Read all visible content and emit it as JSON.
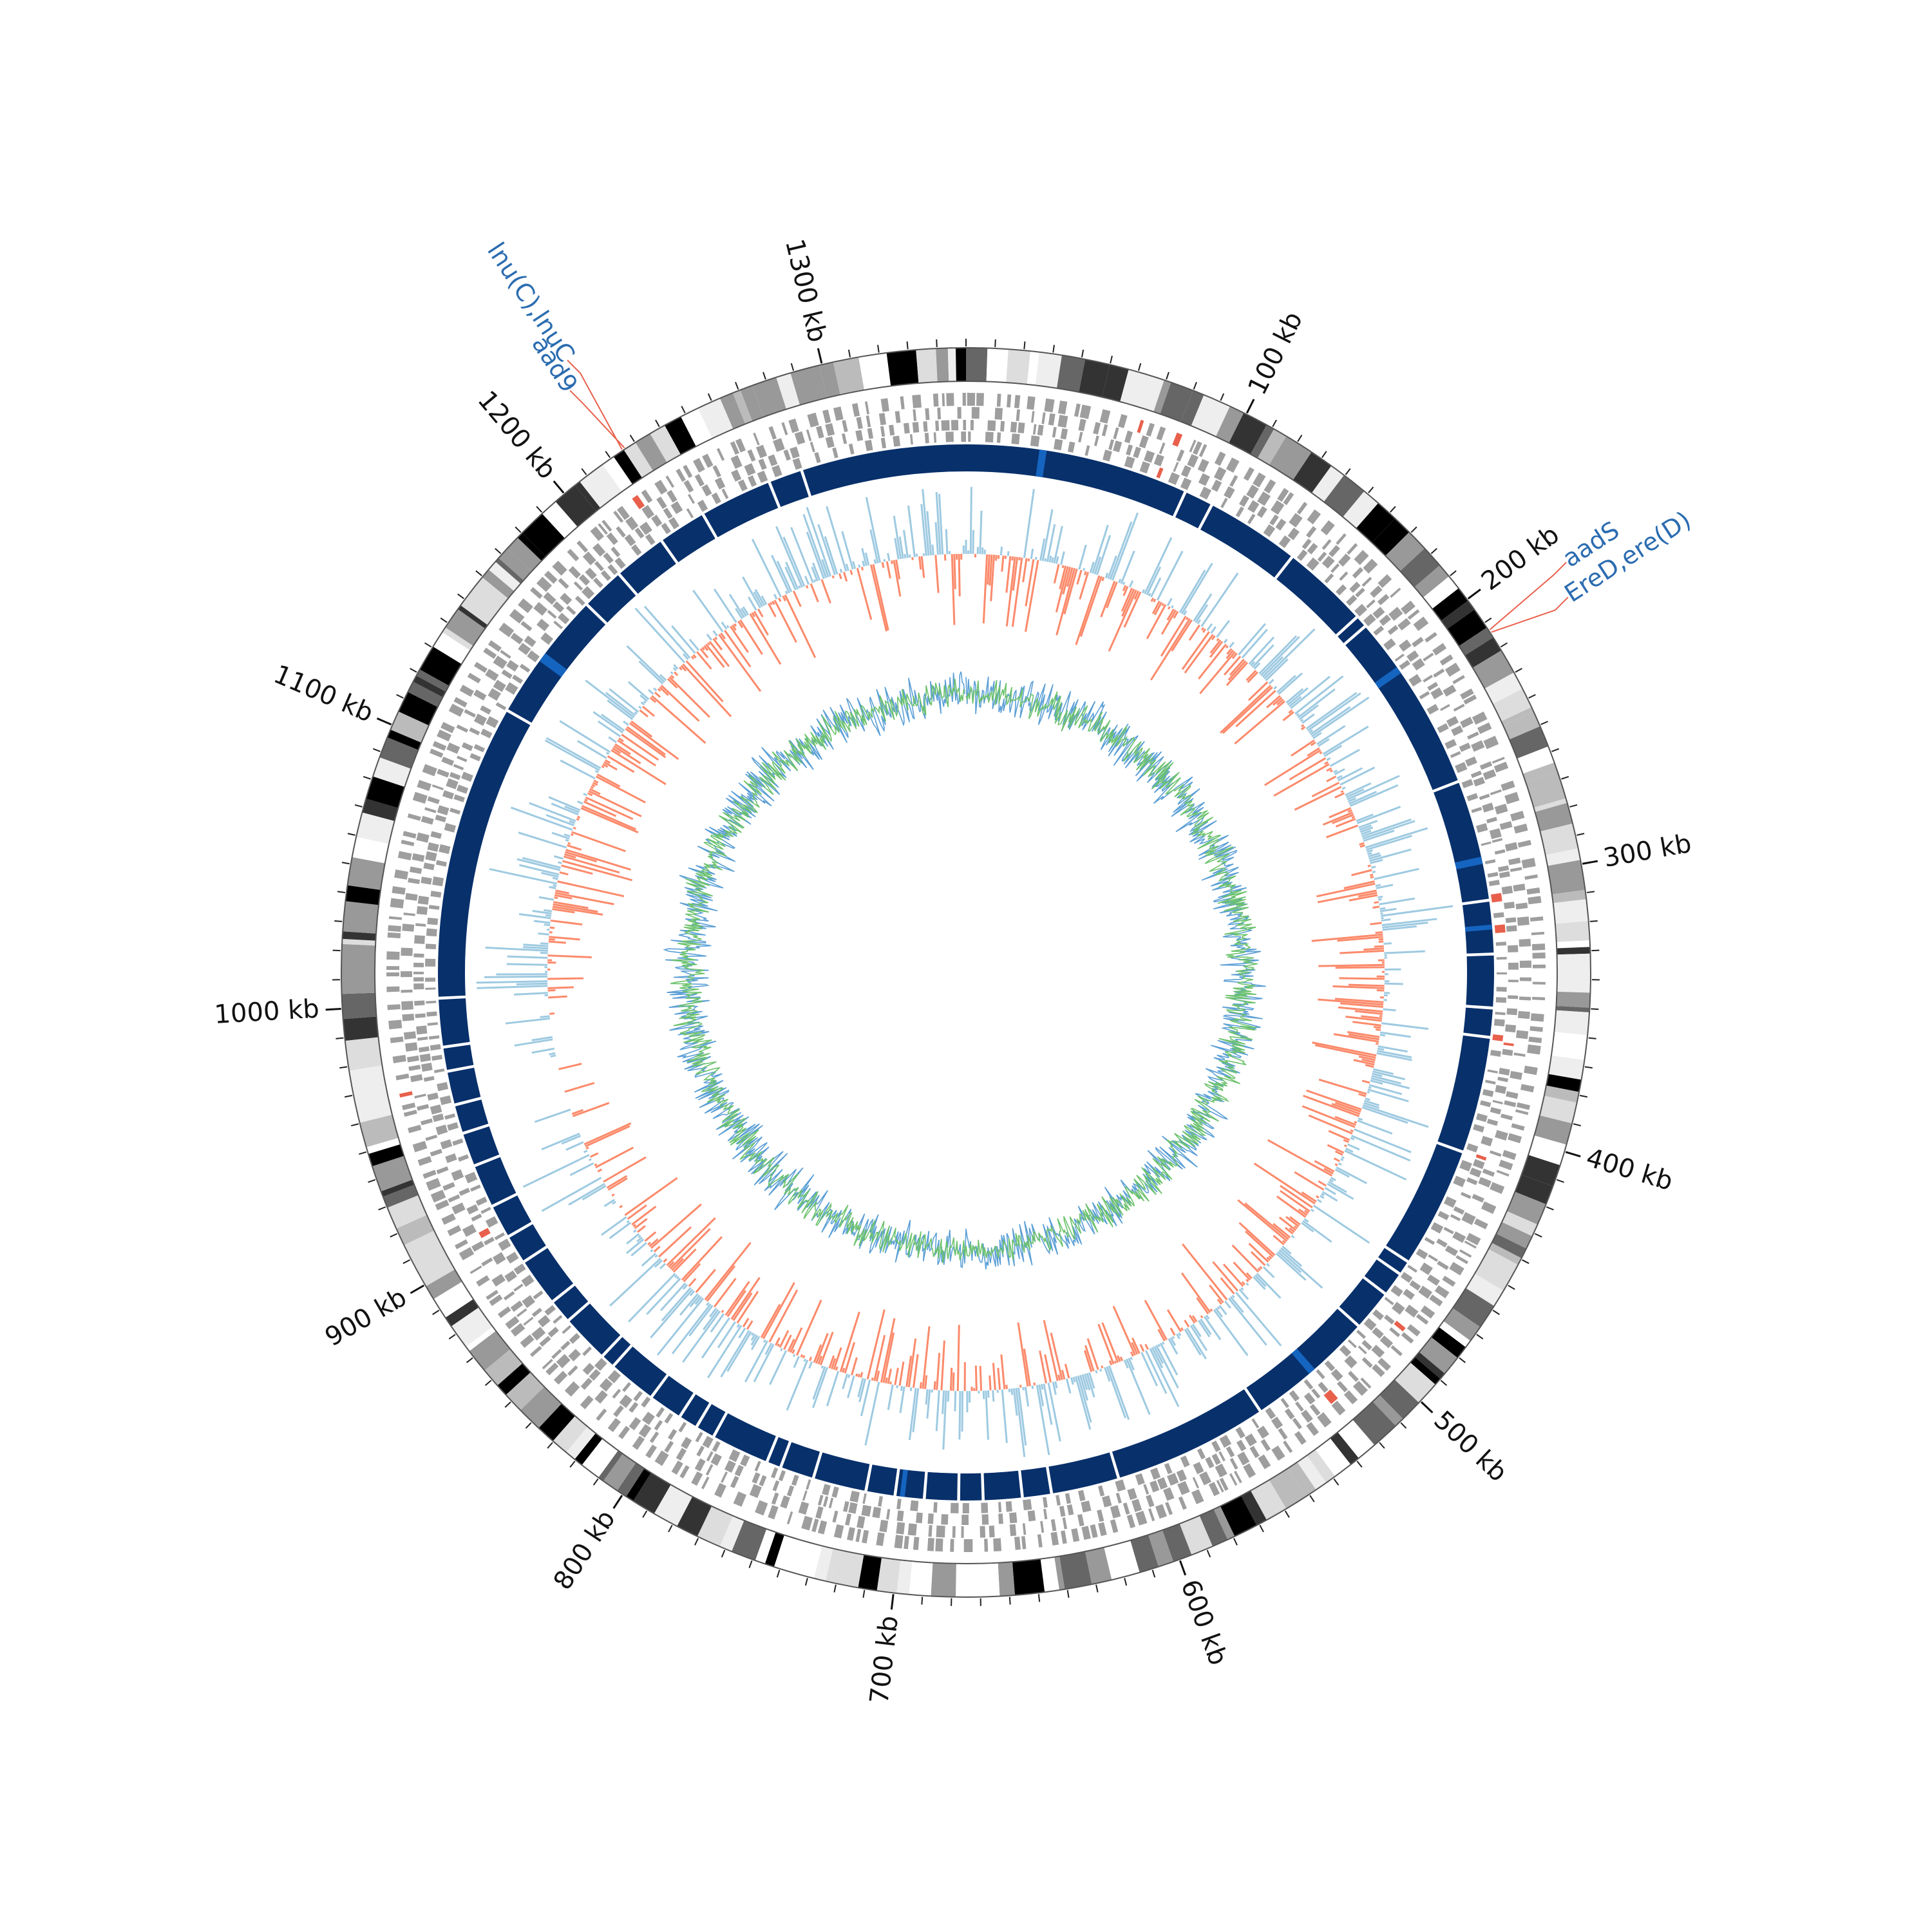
{
  "genome": {
    "length_kb": 1350,
    "colors": {
      "background": "#ffffff",
      "ideogram_outline": "#555555",
      "feature_gray": "#9e9e9e",
      "feature_red": "#e8604c",
      "track_blue": "#08306b",
      "track_blue_highlight": "#1565c0",
      "skew_positive": "#9ecae1",
      "skew_negative": "#fb8a6b",
      "gc_line_green": "#6cc26c",
      "gc_line_blue": "#5b9fd6",
      "annotation_text": "#2b6cb0",
      "annotation_line": "#e8604c"
    }
  },
  "scale": {
    "ticks": [
      {
        "position_kb": 100,
        "label": "100 kb"
      },
      {
        "position_kb": 200,
        "label": "200 kb"
      },
      {
        "position_kb": 300,
        "label": "300 kb"
      },
      {
        "position_kb": 400,
        "label": "400 kb"
      },
      {
        "position_kb": 500,
        "label": "500 kb"
      },
      {
        "position_kb": 600,
        "label": "600 kb"
      },
      {
        "position_kb": 700,
        "label": "700 kb"
      },
      {
        "position_kb": 800,
        "label": "800 kb"
      },
      {
        "position_kb": 900,
        "label": "900 kb"
      },
      {
        "position_kb": 1000,
        "label": "1000 kb"
      },
      {
        "position_kb": 1100,
        "label": "1100 kb"
      },
      {
        "position_kb": 1200,
        "label": "1200 kb"
      },
      {
        "position_kb": 1300,
        "label": "1300 kb"
      }
    ],
    "minor_tick_step_kb": 10
  },
  "annotations": [
    {
      "name": "lnu(C),lnuC",
      "position_kb": 1225
    },
    {
      "name": "aad9",
      "position_kb": 1226
    },
    {
      "name": "aadS",
      "position_kb": 213
    },
    {
      "name": "EreD,ere(D)",
      "position_kb": 214
    }
  ],
  "blue_track_gaps_kb": [
    92,
    104,
    143,
    179,
    184,
    206,
    258,
    292,
    308,
    330,
    352,
    364,
    412,
    462,
    468,
    478,
    495,
    548,
    612,
    640,
    652,
    668,
    678,
    692,
    704,
    716,
    738,
    752,
    758,
    782,
    790,
    798,
    812,
    832,
    838,
    858,
    868,
    888,
    900,
    914,
    932,
    946,
    958,
    972,
    982,
    1002,
    1124,
    1178,
    1196,
    1218,
    1238,
    1268,
    1282
  ]
}
